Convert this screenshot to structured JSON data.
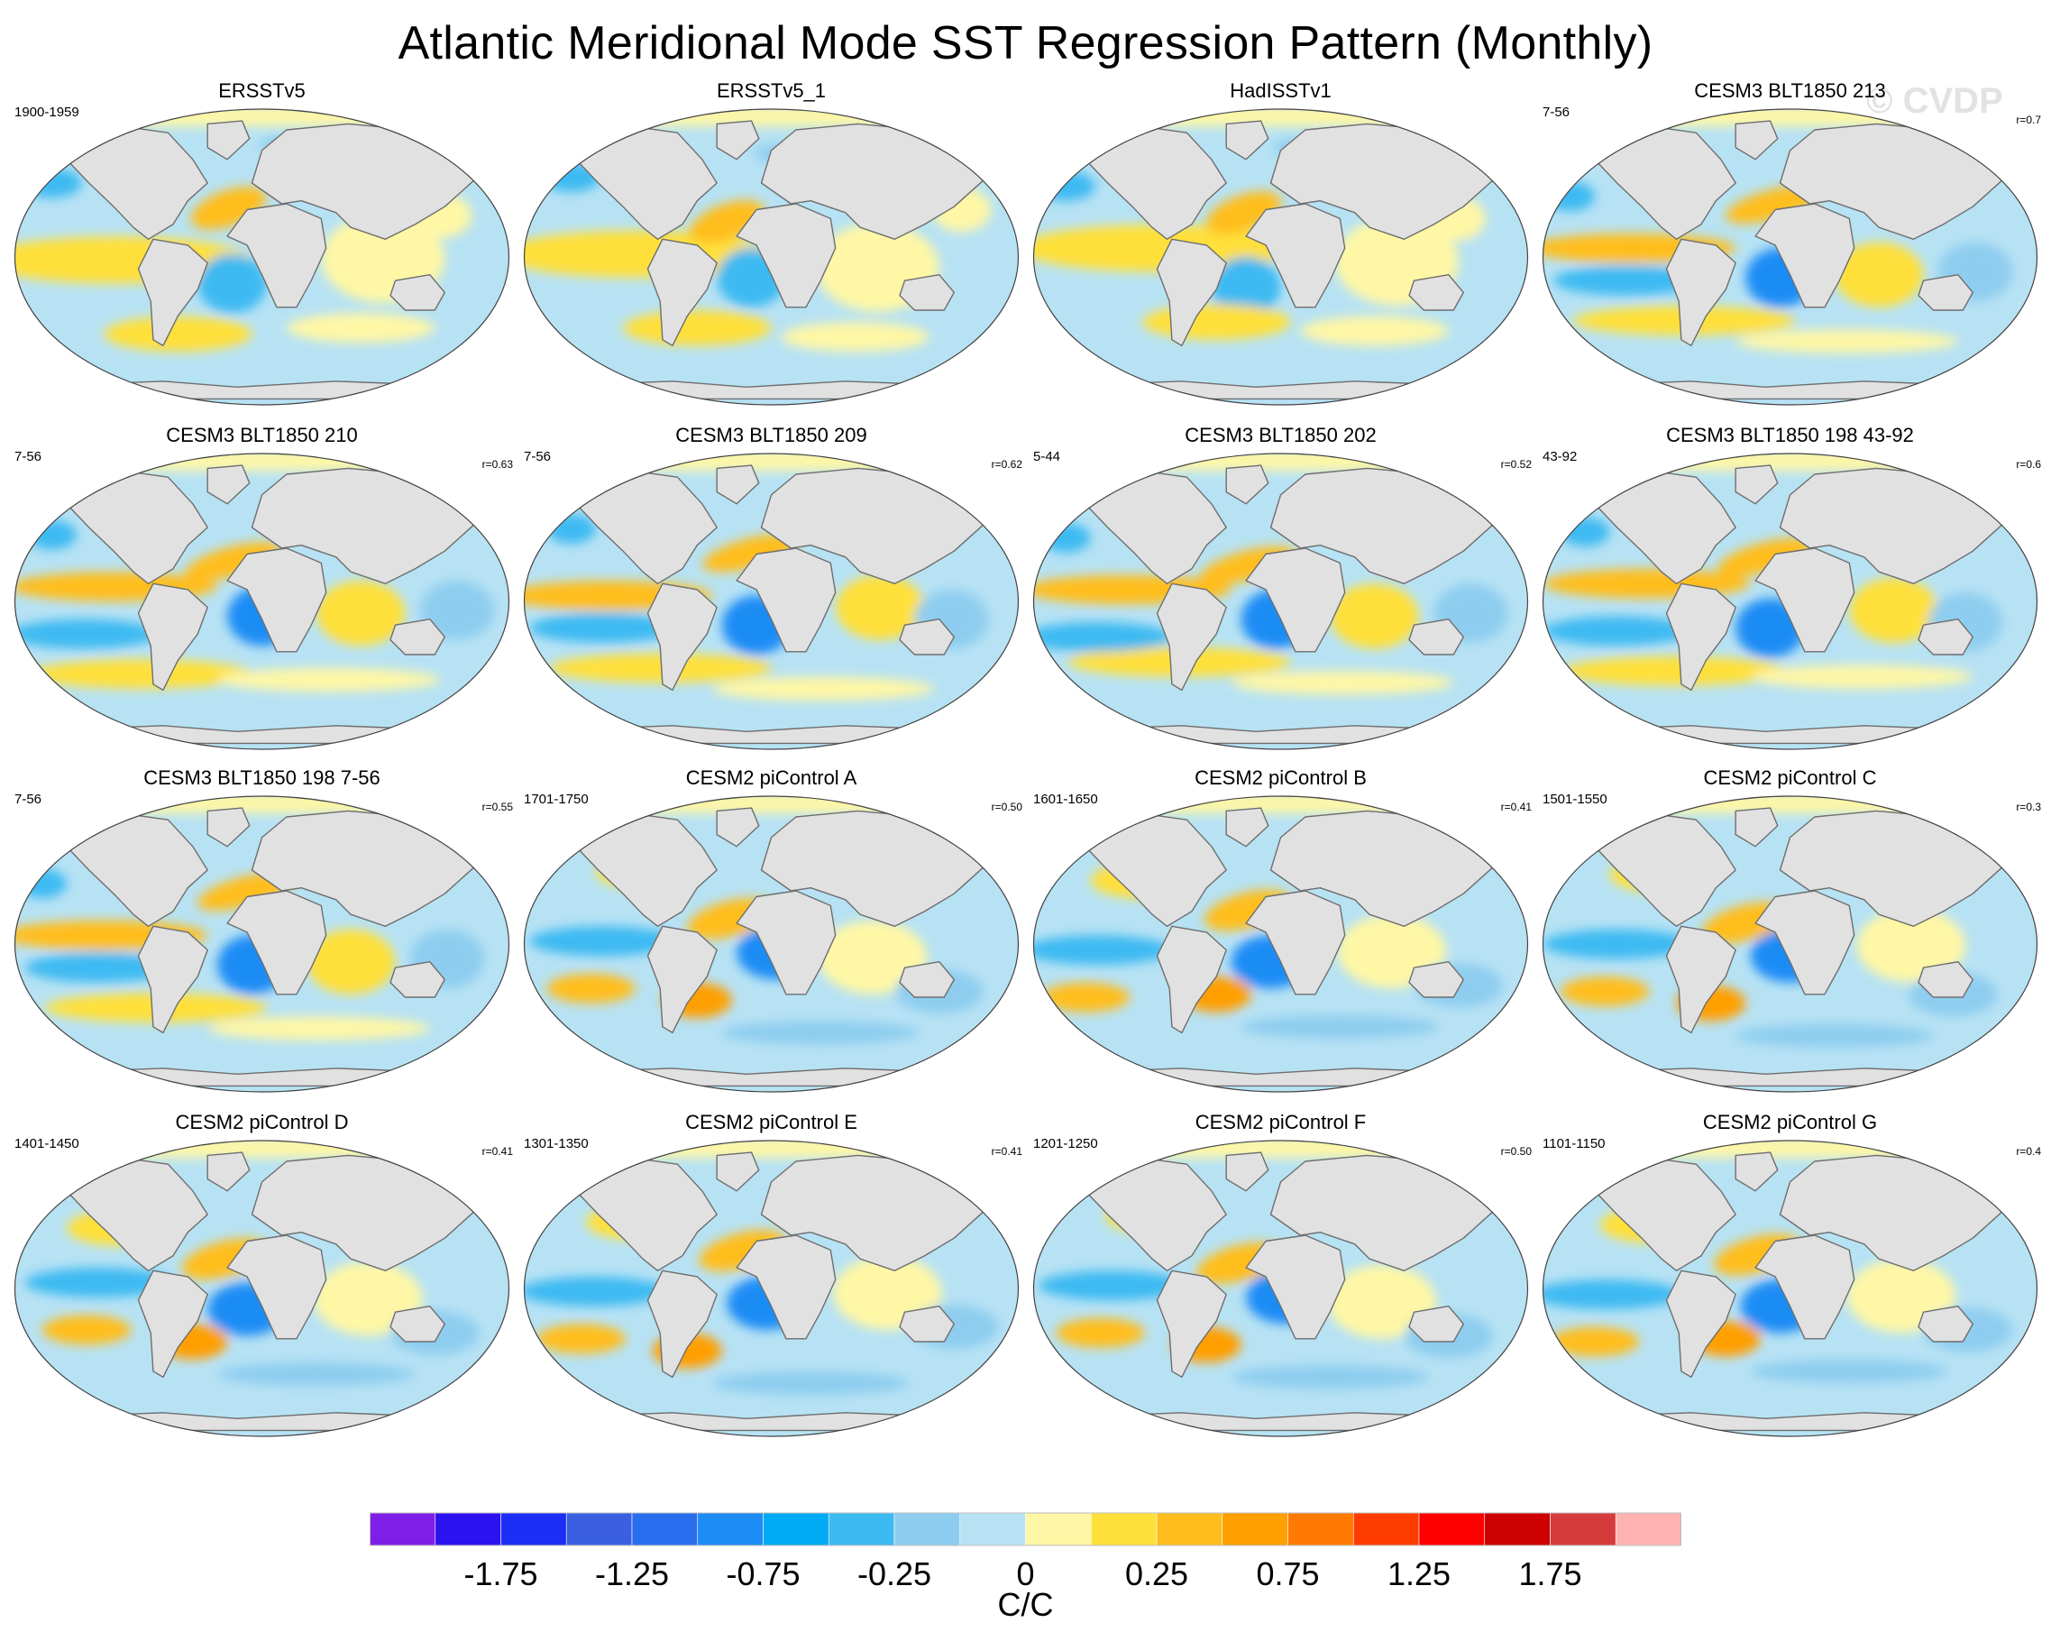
{
  "title": "Atlantic Meridional Mode SST Regression Pattern (Monthly)",
  "watermark": "© CVDP",
  "chart_data": {
    "type": "heatmap",
    "projection": "Robinson (global maps)",
    "variable": "SST regression onto Atlantic Meridional Mode index",
    "units": "C/C",
    "panels": [
      {
        "title": "ERSSTv5",
        "period": "1900-1959",
        "corr": "",
        "pattern": "obs"
      },
      {
        "title": "ERSSTv5_1",
        "period": "",
        "corr": "",
        "pattern": "obs"
      },
      {
        "title": "HadISSTv1",
        "period": "",
        "corr": "",
        "pattern": "obs"
      },
      {
        "title": "CESM3 BLT1850 213",
        "period": "7-56",
        "corr": "r=0.7",
        "pattern": "model"
      },
      {
        "title": "CESM3 BLT1850 210",
        "period": "7-56",
        "corr": "r=0.63",
        "pattern": "model"
      },
      {
        "title": "CESM3 BLT1850 209",
        "period": "7-56",
        "corr": "r=0.62",
        "pattern": "model"
      },
      {
        "title": "CESM3 BLT1850 202",
        "period": "5-44",
        "corr": "r=0.52",
        "pattern": "model"
      },
      {
        "title": "CESM3 BLT1850 198 43-92",
        "period": "43-92",
        "corr": "r=0.6",
        "pattern": "model"
      },
      {
        "title": "CESM3 BLT1850 198 7-56",
        "period": "7-56",
        "corr": "r=0.55",
        "pattern": "model"
      },
      {
        "title": "CESM2 piControl A",
        "period": "1701-1750",
        "corr": "r=0.50",
        "pattern": "pi"
      },
      {
        "title": "CESM2 piControl B",
        "period": "1601-1650",
        "corr": "r=0.41",
        "pattern": "pi"
      },
      {
        "title": "CESM2 piControl C",
        "period": "1501-1550",
        "corr": "r=0.3",
        "pattern": "pi"
      },
      {
        "title": "CESM2 piControl D",
        "period": "1401-1450",
        "corr": "r=0.41",
        "pattern": "pi"
      },
      {
        "title": "CESM2 piControl E",
        "period": "1301-1350",
        "corr": "r=0.41",
        "pattern": "pi"
      },
      {
        "title": "CESM2 piControl F",
        "period": "1201-1250",
        "corr": "r=0.50",
        "pattern": "pi"
      },
      {
        "title": "CESM2 piControl G",
        "period": "1101-1150",
        "corr": "r=0.4",
        "pattern": "pi"
      }
    ],
    "colorbar": {
      "levels": [
        -2.0,
        -1.75,
        -1.5,
        -1.25,
        -1.0,
        -0.75,
        -0.5,
        -0.25,
        -0.1,
        0,
        0.1,
        0.25,
        0.5,
        0.75,
        1.0,
        1.25,
        1.5,
        1.75,
        2.0
      ],
      "tick_labels": [
        "-1.75",
        "-1.25",
        "-0.75",
        "-0.25",
        "0",
        "0.25",
        "0.75",
        "1.25",
        "1.75"
      ],
      "colors": [
        "#7e1ee6",
        "#2d12f0",
        "#1a2ef5",
        "#3a5fe0",
        "#2a6ef0",
        "#1e8cf5",
        "#00aaf5",
        "#3cbaf2",
        "#8ecdef",
        "#b7e2f4",
        "#fff7a5",
        "#ffe03a",
        "#ffbe1e",
        "#ff9f00",
        "#ff7a00",
        "#ff3c00",
        "#ff0000",
        "#cc0000",
        "#d63b3b",
        "#ffb2b2"
      ],
      "label": "C/C"
    }
  },
  "style": {
    "land": "#e1e1e1",
    "coast": "#6e6e6e",
    "ocean_base": "#b7e2f4",
    "warm": "#ffe03a",
    "warm_pale": "#fff7a5",
    "warm_strong": "#ffbe1e",
    "warm_hot": "#ff9f00",
    "cool": "#8ecdef",
    "cool_strong": "#3cbaf2",
    "cool_deep": "#1e8cf5"
  }
}
